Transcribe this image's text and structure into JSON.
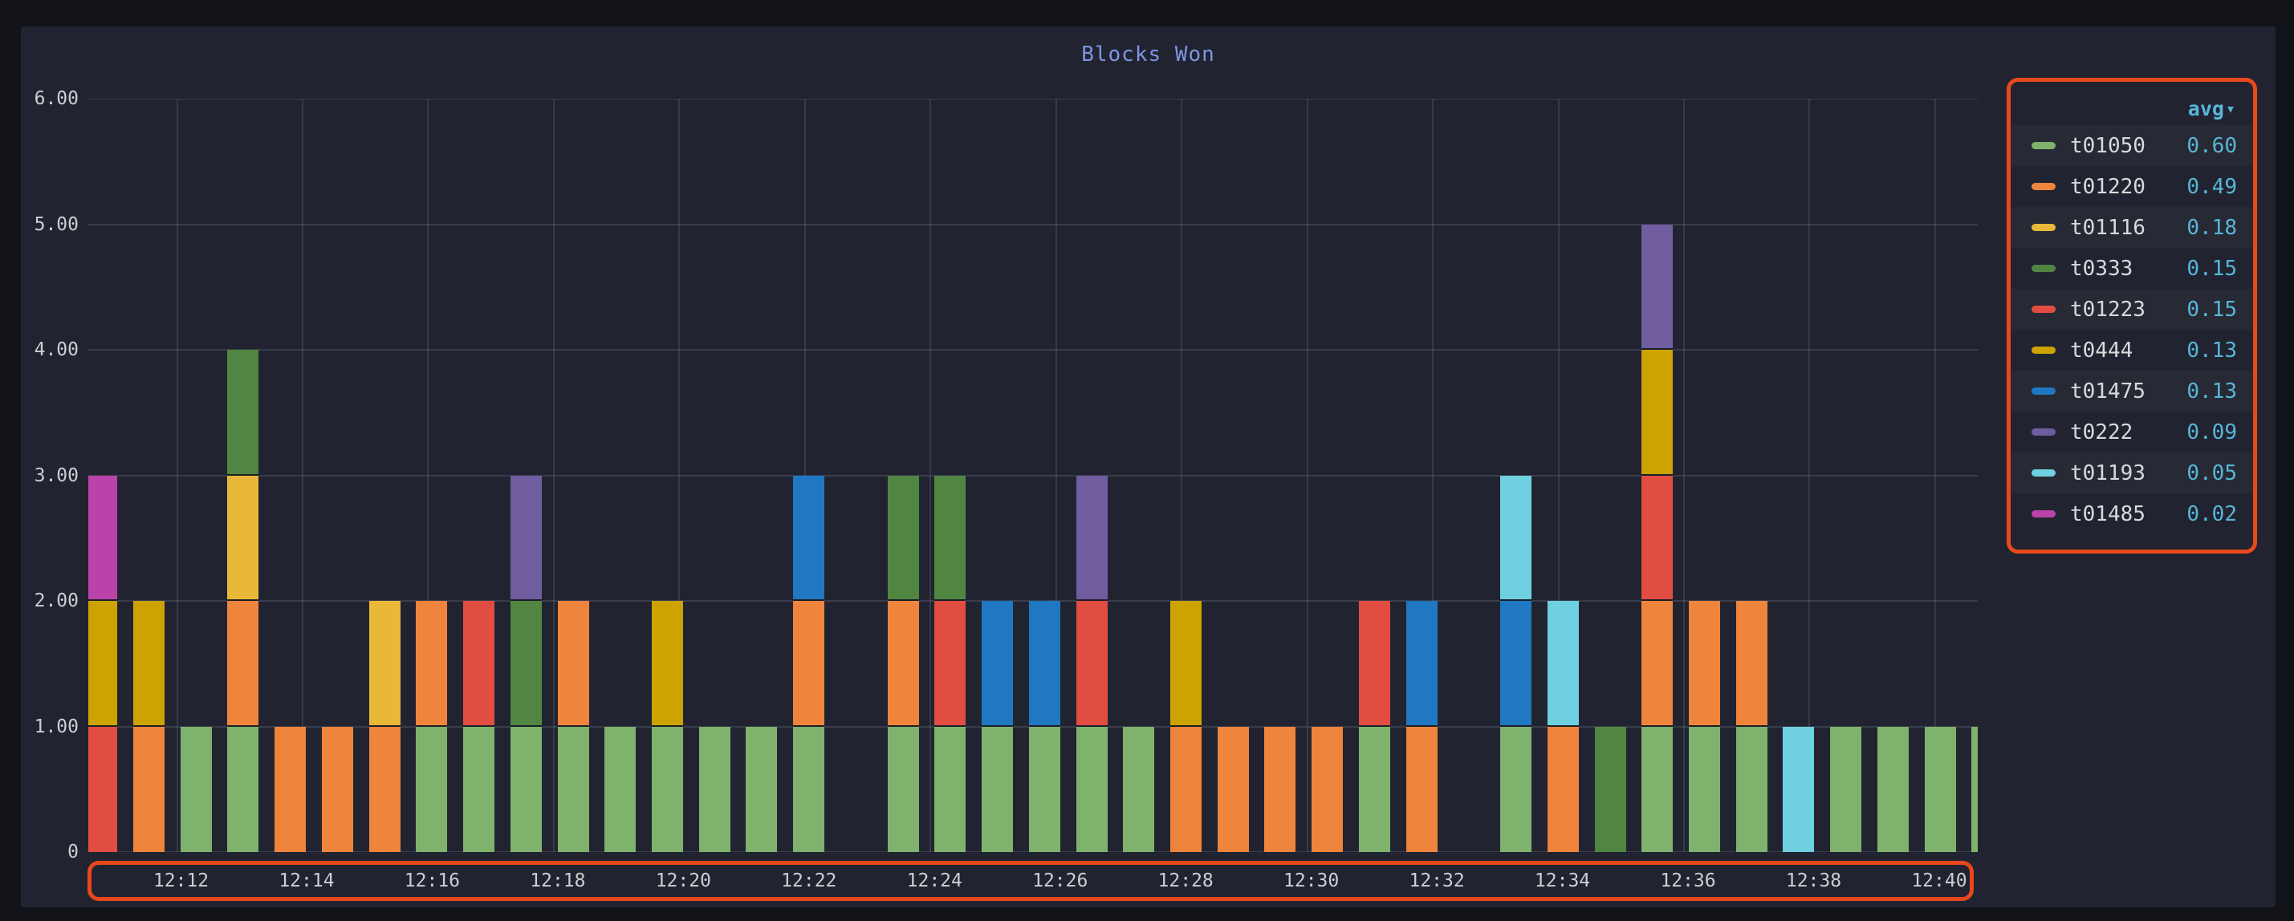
{
  "panel": {
    "title": "Blocks Won"
  },
  "colors": {
    "background": "#111318",
    "panel_background": "#212430",
    "row_stripe": "#272a34",
    "grid": "rgba(205,215,238,0.13)",
    "axis_text": "#cdced1",
    "title_text": "#7e95e2",
    "legend_value_text": "#58b6d8",
    "annotation_outline": "#e8481c",
    "segment_divider": "#1b1e26"
  },
  "legend": {
    "sort_header": "avg",
    "sort_indicator": "▾",
    "items": [
      {
        "id": "t01050",
        "label": "t01050",
        "avg": "0.60",
        "color": "#7EB26D"
      },
      {
        "id": "t01220",
        "label": "t01220",
        "avg": "0.49",
        "color": "#EF843C"
      },
      {
        "id": "t01116",
        "label": "t01116",
        "avg": "0.18",
        "color": "#EAB839"
      },
      {
        "id": "t0333",
        "label": "t0333",
        "avg": "0.15",
        "color": "#508642"
      },
      {
        "id": "t01223",
        "label": "t01223",
        "avg": "0.15",
        "color": "#E24D42"
      },
      {
        "id": "t0444",
        "label": "t0444",
        "avg": "0.13",
        "color": "#CCA300"
      },
      {
        "id": "t01475",
        "label": "t01475",
        "avg": "0.13",
        "color": "#1F78C1"
      },
      {
        "id": "t0222",
        "label": "t0222",
        "avg": "0.09",
        "color": "#705DA0"
      },
      {
        "id": "t01193",
        "label": "t01193",
        "avg": "0.05",
        "color": "#6ED0E0"
      },
      {
        "id": "t01485",
        "label": "t01485",
        "avg": "0.02",
        "color": "#BA43A9"
      }
    ]
  },
  "chart_data": {
    "type": "bar",
    "stacked": true,
    "title": "Blocks Won",
    "xlabel": "",
    "ylabel": "",
    "ylim": [
      0,
      6
    ],
    "grid": true,
    "legend_position": "right",
    "y_tick_values": [
      0,
      1,
      2,
      3,
      4,
      5,
      6
    ],
    "y_tick_labels": [
      "0",
      "1.00",
      "2.00",
      "3.00",
      "4.00",
      "5.00",
      "6.00"
    ],
    "x_tick_labels": [
      "12:12",
      "12:14",
      "12:16",
      "12:18",
      "12:20",
      "12:22",
      "12:24",
      "12:26",
      "12:28",
      "12:30",
      "12:32",
      "12:34",
      "12:36",
      "12:38",
      "12:40"
    ],
    "bar_interval_seconds": 45,
    "segment_value": 1,
    "bars": [
      {
        "slot": 0,
        "stack": [
          "t01223",
          "t0444",
          "t01485"
        ]
      },
      {
        "slot": 1,
        "stack": [
          "t01220",
          "t0444"
        ]
      },
      {
        "slot": 2,
        "stack": [
          "t01050"
        ]
      },
      {
        "slot": 3,
        "stack": [
          "t01050",
          "t01220",
          "t01116",
          "t0333"
        ]
      },
      {
        "slot": 4,
        "stack": [
          "t01220"
        ]
      },
      {
        "slot": 5,
        "stack": [
          "t01220"
        ]
      },
      {
        "slot": 6,
        "stack": [
          "t01220",
          "t01116"
        ]
      },
      {
        "slot": 7,
        "stack": [
          "t01050",
          "t01220"
        ]
      },
      {
        "slot": 8,
        "stack": [
          "t01050",
          "t01223"
        ]
      },
      {
        "slot": 9,
        "stack": [
          "t01050",
          "t0333",
          "t0222"
        ]
      },
      {
        "slot": 10,
        "stack": [
          "t01050",
          "t01220"
        ]
      },
      {
        "slot": 11,
        "stack": [
          "t01050"
        ]
      },
      {
        "slot": 12,
        "stack": [
          "t01050",
          "t0444"
        ]
      },
      {
        "slot": 13,
        "stack": [
          "t01050"
        ]
      },
      {
        "slot": 14,
        "stack": [
          "t01050"
        ]
      },
      {
        "slot": 15,
        "stack": [
          "t01050",
          "t01220",
          "t01475"
        ]
      },
      {
        "slot": 16,
        "stack": []
      },
      {
        "slot": 17,
        "stack": [
          "t01050",
          "t01220",
          "t0333"
        ]
      },
      {
        "slot": 18,
        "stack": [
          "t01050",
          "t01223",
          "t0333"
        ]
      },
      {
        "slot": 19,
        "stack": [
          "t01050",
          "t01475"
        ]
      },
      {
        "slot": 20,
        "stack": [
          "t01050",
          "t01475"
        ]
      },
      {
        "slot": 21,
        "stack": [
          "t01050",
          "t01223",
          "t0222"
        ]
      },
      {
        "slot": 22,
        "stack": [
          "t01050"
        ]
      },
      {
        "slot": 23,
        "stack": [
          "t01220",
          "t0444"
        ]
      },
      {
        "slot": 24,
        "stack": [
          "t01220"
        ]
      },
      {
        "slot": 25,
        "stack": [
          "t01220"
        ]
      },
      {
        "slot": 26,
        "stack": [
          "t01220"
        ]
      },
      {
        "slot": 27,
        "stack": [
          "t01050",
          "t01223"
        ]
      },
      {
        "slot": 28,
        "stack": [
          "t01220",
          "t01475"
        ]
      },
      {
        "slot": 29,
        "stack": []
      },
      {
        "slot": 30,
        "stack": [
          "t01050",
          "t01475",
          "t01193"
        ]
      },
      {
        "slot": 31,
        "stack": [
          "t01220",
          "t01193"
        ]
      },
      {
        "slot": 32,
        "stack": [
          "t0333"
        ]
      },
      {
        "slot": 33,
        "stack": [
          "t01050",
          "t01220",
          "t01223",
          "t0444",
          "t0222"
        ]
      },
      {
        "slot": 34,
        "stack": [
          "t01050",
          "t01220"
        ]
      },
      {
        "slot": 35,
        "stack": [
          "t01050",
          "t01220"
        ]
      },
      {
        "slot": 36,
        "stack": [
          "t01193"
        ]
      },
      {
        "slot": 37,
        "stack": [
          "t01050"
        ]
      },
      {
        "slot": 38,
        "stack": [
          "t01050"
        ]
      },
      {
        "slot": 39,
        "stack": [
          "t01050"
        ]
      },
      {
        "slot": 40,
        "stack": [
          "t01050"
        ]
      }
    ]
  }
}
